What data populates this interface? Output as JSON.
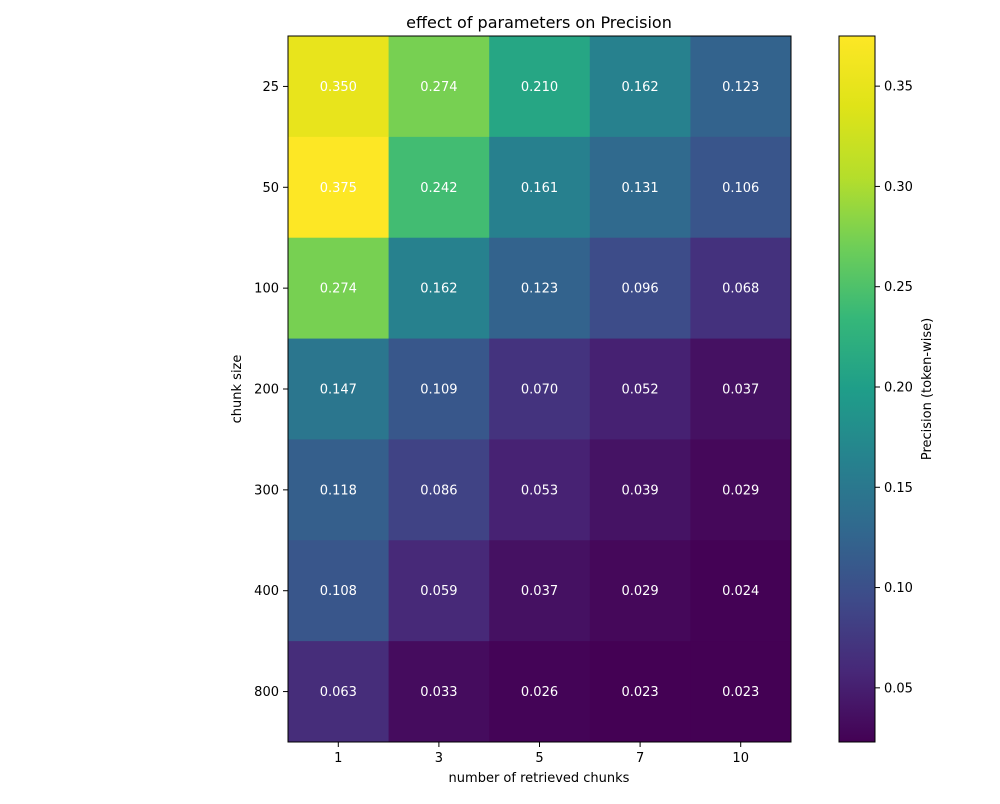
{
  "chart_data": {
    "type": "heatmap",
    "title": "effect of parameters on Precision",
    "xlabel": "number of retrieved chunks",
    "ylabel": "chunk size",
    "x_categories": [
      "1",
      "3",
      "5",
      "7",
      "10"
    ],
    "y_categories": [
      "25",
      "50",
      "100",
      "200",
      "300",
      "400",
      "800"
    ],
    "values": [
      [
        0.35,
        0.274,
        0.21,
        0.162,
        0.123
      ],
      [
        0.375,
        0.242,
        0.161,
        0.131,
        0.106
      ],
      [
        0.274,
        0.162,
        0.123,
        0.096,
        0.068
      ],
      [
        0.147,
        0.109,
        0.07,
        0.052,
        0.037
      ],
      [
        0.118,
        0.086,
        0.053,
        0.039,
        0.029
      ],
      [
        0.108,
        0.059,
        0.037,
        0.029,
        0.024
      ],
      [
        0.063,
        0.033,
        0.026,
        0.023,
        0.023
      ]
    ],
    "value_labels": [
      [
        "0.350",
        "0.274",
        "0.210",
        "0.162",
        "0.123"
      ],
      [
        "0.375",
        "0.242",
        "0.161",
        "0.131",
        "0.106"
      ],
      [
        "0.274",
        "0.162",
        "0.123",
        "0.096",
        "0.068"
      ],
      [
        "0.147",
        "0.109",
        "0.070",
        "0.052",
        "0.037"
      ],
      [
        "0.118",
        "0.086",
        "0.053",
        "0.039",
        "0.029"
      ],
      [
        "0.108",
        "0.059",
        "0.037",
        "0.029",
        "0.024"
      ],
      [
        "0.063",
        "0.033",
        "0.026",
        "0.023",
        "0.023"
      ]
    ],
    "colormap": "viridis",
    "colorbar": {
      "label": "Precision (token-wise)",
      "range": [
        0.023,
        0.375
      ],
      "ticks": [
        0.05,
        0.1,
        0.15,
        0.2,
        0.25,
        0.3,
        0.35
      ],
      "tick_labels": [
        "0.05",
        "0.10",
        "0.15",
        "0.20",
        "0.25",
        "0.30",
        "0.35"
      ]
    },
    "grid": false,
    "legend": "colorbar-right"
  }
}
